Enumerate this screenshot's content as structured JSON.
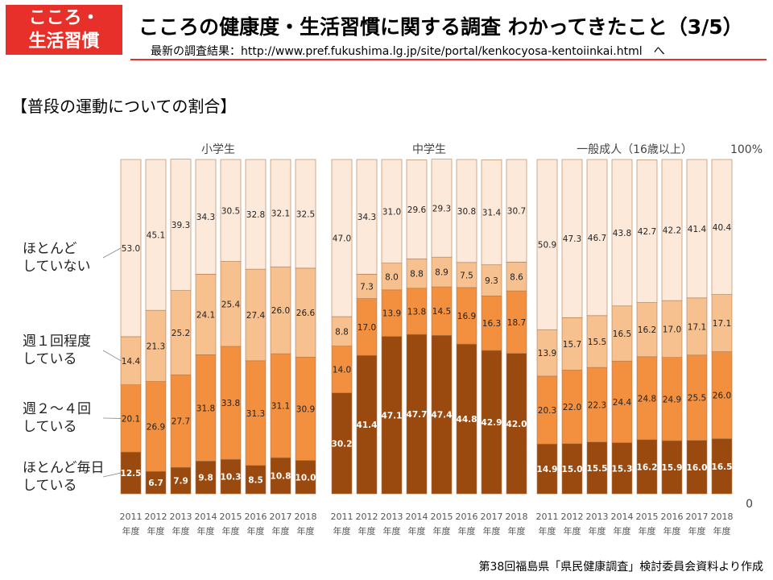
{
  "header": {
    "tag_lines": [
      "こころ・",
      "生活習慣"
    ],
    "title": "こころの健康度・生活習慣に関する調査 わかってきたこと（3/5）",
    "url_text": "最新の調査結果：http://www.pref.fukushima.lg.jp/site/portal/kenkocyosa-kentoiinkai.html　へ"
  },
  "section_title": "【普段の運動についての割合】",
  "footer_source": "第38回福島県「県民健康調査」検討委員会資料より作成",
  "colors": {
    "daily": "#9a4a0f",
    "weekly_2_4": "#f2903f",
    "weekly_1": "#f7c08f",
    "none": "#fde9da",
    "bar_border": "#b07a4e"
  },
  "chart_data": {
    "type": "bar",
    "stacked": true,
    "percent_axis": [
      "0",
      "100%"
    ],
    "legend_position": "left",
    "series": [
      {
        "name": "ほとんど毎日している",
        "name_lines": [
          "ほとんど毎日",
          "している"
        ],
        "color_key": "daily"
      },
      {
        "name": "週２～４回している",
        "name_lines": [
          "週２～４回",
          "している"
        ],
        "color_key": "weekly_2_4"
      },
      {
        "name": "週１回程度している",
        "name_lines": [
          "週１回程度",
          "している"
        ],
        "color_key": "weekly_1"
      },
      {
        "name": "ほとんどしていない",
        "name_lines": [
          "ほとんど",
          "していない"
        ],
        "color_key": "none"
      }
    ],
    "groups": [
      {
        "name": "小学生",
        "years": [
          "2011",
          "2012",
          "2013",
          "2014",
          "2015",
          "2016",
          "2017",
          "2018"
        ],
        "year_suffix": "年度",
        "values": [
          [
            12.5,
            20.1,
            14.4,
            53.0
          ],
          [
            6.7,
            26.9,
            21.3,
            45.1
          ],
          [
            7.9,
            27.7,
            25.2,
            39.3
          ],
          [
            9.8,
            31.8,
            24.1,
            34.3
          ],
          [
            10.3,
            33.8,
            25.4,
            30.5
          ],
          [
            8.5,
            31.3,
            27.4,
            32.8
          ],
          [
            10.8,
            31.1,
            26.0,
            32.1
          ],
          [
            10.0,
            30.9,
            26.6,
            32.5
          ]
        ]
      },
      {
        "name": "中学生",
        "years": [
          "2011",
          "2012",
          "2013",
          "2014",
          "2015",
          "2016",
          "2017",
          "2018"
        ],
        "year_suffix": "年度",
        "values": [
          [
            30.2,
            14.0,
            8.8,
            47.0
          ],
          [
            41.4,
            17.0,
            7.3,
            34.3
          ],
          [
            47.1,
            13.9,
            8.0,
            31.0
          ],
          [
            47.7,
            13.8,
            8.8,
            29.6
          ],
          [
            47.4,
            14.5,
            8.9,
            29.3
          ],
          [
            44.8,
            16.9,
            7.5,
            30.8
          ],
          [
            42.9,
            16.3,
            9.3,
            31.4
          ],
          [
            42.0,
            18.7,
            8.6,
            30.7
          ]
        ]
      },
      {
        "name": "一般成人（16歳以上）",
        "years": [
          "2011",
          "2012",
          "2013",
          "2014",
          "2015",
          "2016",
          "2017",
          "2018"
        ],
        "year_suffix": "年度",
        "values": [
          [
            14.9,
            20.3,
            13.9,
            50.9
          ],
          [
            15.0,
            22.0,
            15.7,
            47.3
          ],
          [
            15.5,
            22.3,
            15.5,
            46.7
          ],
          [
            15.3,
            24.4,
            16.5,
            43.8
          ],
          [
            16.2,
            24.8,
            16.2,
            42.7
          ],
          [
            15.9,
            24.9,
            17.0,
            42.2
          ],
          [
            16.0,
            25.5,
            17.1,
            41.4
          ],
          [
            16.5,
            26.0,
            17.1,
            40.4
          ]
        ]
      }
    ]
  }
}
